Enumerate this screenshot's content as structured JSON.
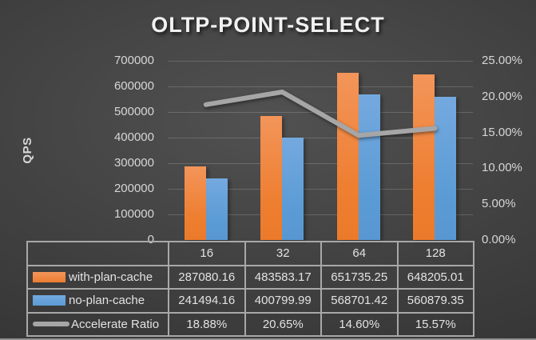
{
  "title": "OLTP-POINT-SELECT",
  "colors": {
    "with_plan_cache": "#ED7D31",
    "no_plan_cache": "#5B9BD5",
    "accelerate_ratio": "#A6A6A6",
    "background_center": "#4F4F4F",
    "background_edge": "#282828",
    "table_border": "#A8A8A8",
    "text": "#D9D9D9"
  },
  "chart_data": {
    "type": "bar",
    "combo": "bar+line",
    "title": "OLTP-POINT-SELECT",
    "ylabel_left": "QPS",
    "ylabel_right": "",
    "categories": [
      "16",
      "32",
      "64",
      "128"
    ],
    "series": [
      {
        "name": "with-plan-cache",
        "type": "bar",
        "axis": "left",
        "color": "#ED7D31",
        "values": [
          287080.16,
          483583.17,
          651735.25,
          648205.01
        ],
        "formatted": [
          "287080.16",
          "483583.17",
          "651735.25",
          "648205.01"
        ]
      },
      {
        "name": "no-plan-cache",
        "type": "bar",
        "axis": "left",
        "color": "#5B9BD5",
        "values": [
          241494.16,
          400799.99,
          568701.42,
          560879.35
        ],
        "formatted": [
          "241494.16",
          "400799.99",
          "568701.42",
          "560879.35"
        ]
      },
      {
        "name": "Accelerate Ratio",
        "type": "line",
        "axis": "right",
        "color": "#A6A6A6",
        "values": [
          18.88,
          20.65,
          14.6,
          15.57
        ],
        "formatted": [
          "18.88%",
          "20.65%",
          "14.60%",
          "15.57%"
        ]
      }
    ],
    "ylim_left": [
      0,
      700000
    ],
    "ylim_right": [
      0,
      25
    ],
    "left_ticks": [
      "700000",
      "600000",
      "500000",
      "400000",
      "300000",
      "200000",
      "100000",
      "0"
    ],
    "right_ticks": [
      "25.00%",
      "20.00%",
      "15.00%",
      "10.00%",
      "5.00%",
      "0.00%"
    ],
    "grid": true,
    "legend_position": "data-table-left"
  }
}
